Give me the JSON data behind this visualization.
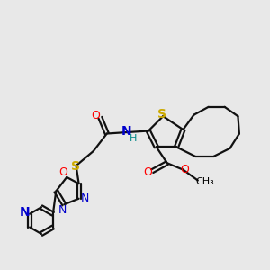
{
  "bg_color": "#e8e8e8",
  "atom_colors": {
    "S": "#ccaa00",
    "O": "#ff0000",
    "N": "#0000cc",
    "C": "#000000",
    "H": "#008888"
  },
  "bond_color": "#111111",
  "font_size": 9
}
